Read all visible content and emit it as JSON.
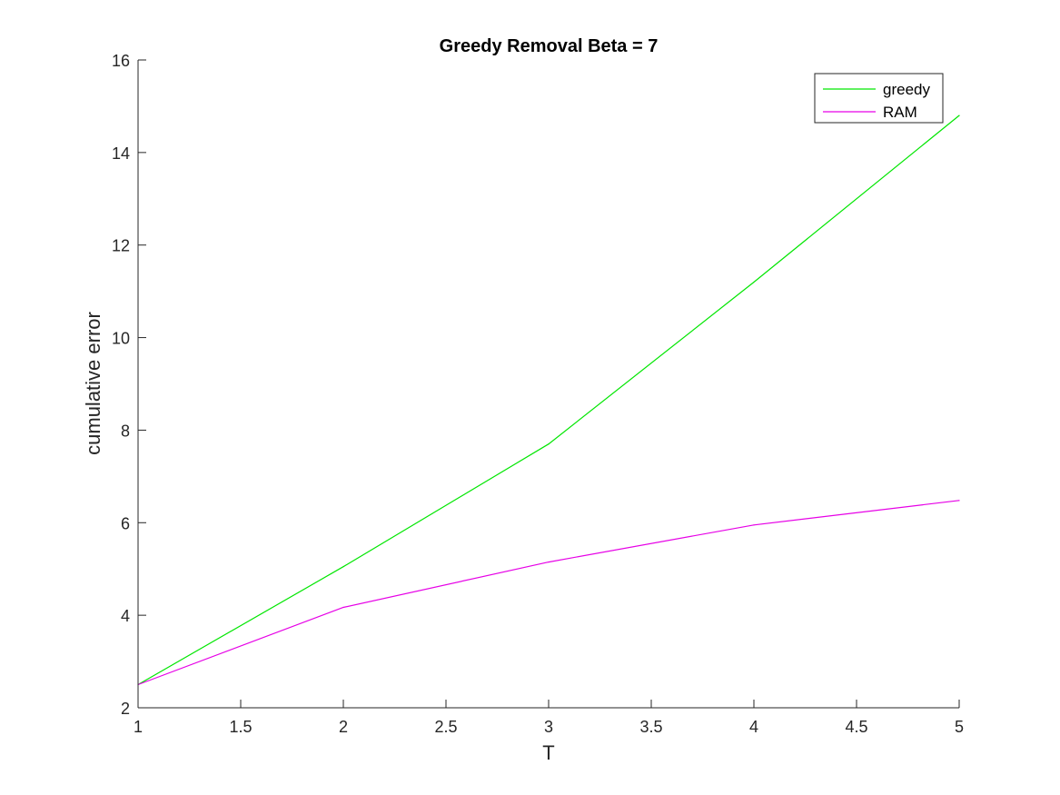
{
  "chart_data": {
    "type": "line",
    "title": "Greedy Removal Beta = 7",
    "xlabel": "T",
    "ylabel": "cumulative error",
    "xlim": [
      1,
      5
    ],
    "ylim": [
      2,
      16
    ],
    "x_ticks": [
      "1",
      "1.5",
      "2",
      "2.5",
      "3",
      "3.5",
      "4",
      "4.5",
      "5"
    ],
    "y_ticks": [
      "2",
      "4",
      "6",
      "8",
      "10",
      "12",
      "14",
      "16"
    ],
    "grid": false,
    "legend_position": "top-right",
    "x": [
      1,
      2,
      3,
      4,
      5
    ],
    "series": [
      {
        "name": "greedy",
        "color": "#00e600",
        "values": [
          2.5,
          5.05,
          7.7,
          11.2,
          14.8
        ]
      },
      {
        "name": "RAM",
        "color": "#e600e6",
        "values": [
          2.5,
          4.17,
          5.15,
          5.95,
          6.48
        ]
      }
    ]
  }
}
